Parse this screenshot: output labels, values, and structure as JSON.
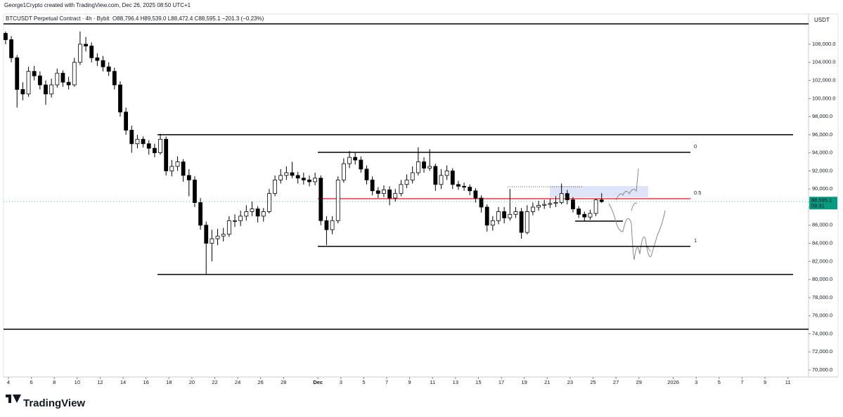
{
  "header": {
    "author_line": "George1Crypto created with TradingView.com, Dec 26, 2025 08:50 UTC+1"
  },
  "footer": {
    "brand": "TradingView"
  },
  "chart_data": {
    "type": "candlestick",
    "symbol_line": "BTCUSDT Perpetual Contract · 4h · Bybit",
    "ohlc_line": "O88,796.4 H89,539.0 L88,472.4 C88,595.1 −201.3 (−0.23%)",
    "currency": "USDT",
    "last_price_label": {
      "value": 88595.1,
      "label": "88,595.1"
    },
    "countdown": "09:31",
    "up_color": "#ffffff",
    "down_color": "#000000",
    "wick_color": "#000000",
    "last_price_color": "#089981",
    "xlim": [
      -0.43,
      69.8
    ],
    "ylim": [
      69224,
      108170
    ],
    "xticks": [
      {
        "value": 0,
        "label": "4"
      },
      {
        "value": 2,
        "label": "6"
      },
      {
        "value": 4,
        "label": "8"
      },
      {
        "value": 6,
        "label": "10"
      },
      {
        "value": 8,
        "label": "12"
      },
      {
        "value": 10,
        "label": "14"
      },
      {
        "value": 12,
        "label": "16"
      },
      {
        "value": 14,
        "label": "18"
      },
      {
        "value": 16,
        "label": "20"
      },
      {
        "value": 18,
        "label": "22"
      },
      {
        "value": 20,
        "label": "24"
      },
      {
        "value": 22,
        "label": "26"
      },
      {
        "value": 24,
        "label": "28"
      },
      {
        "value": 27,
        "label": "Dec"
      },
      {
        "value": 29,
        "label": "3"
      },
      {
        "value": 31,
        "label": "5"
      },
      {
        "value": 33,
        "label": "7"
      },
      {
        "value": 35,
        "label": "9"
      },
      {
        "value": 37,
        "label": "11"
      },
      {
        "value": 39,
        "label": "13"
      },
      {
        "value": 41,
        "label": "15"
      },
      {
        "value": 43,
        "label": "17"
      },
      {
        "value": 45,
        "label": "19"
      },
      {
        "value": 47,
        "label": "21"
      },
      {
        "value": 49,
        "label": "23"
      },
      {
        "value": 51,
        "label": "25"
      },
      {
        "value": 53,
        "label": "27"
      },
      {
        "value": 55,
        "label": "29"
      },
      {
        "value": 58,
        "label": "2026"
      },
      {
        "value": 60,
        "label": "3"
      },
      {
        "value": 62,
        "label": "5"
      },
      {
        "value": 64,
        "label": "7"
      },
      {
        "value": 66,
        "label": "9"
      },
      {
        "value": 68,
        "label": "11"
      }
    ],
    "yticks": [
      {
        "value": 70000,
        "label": "70,000.0"
      },
      {
        "value": 72000,
        "label": "72,000.0"
      },
      {
        "value": 74000,
        "label": "74,000.0"
      },
      {
        "value": 76000,
        "label": "76,000.0"
      },
      {
        "value": 78000,
        "label": "78,000.0"
      },
      {
        "value": 80000,
        "label": "80,000.0"
      },
      {
        "value": 82000,
        "label": "82,000.0"
      },
      {
        "value": 84000,
        "label": "84,000.0"
      },
      {
        "value": 86000,
        "label": "86,000.0"
      },
      {
        "value": 88000,
        "label": "88,000.0"
      },
      {
        "value": 90000,
        "label": "90,000.0"
      },
      {
        "value": 92000,
        "label": "92,000.0"
      },
      {
        "value": 94000,
        "label": "94,000.0"
      },
      {
        "value": 96000,
        "label": "96,000.0"
      },
      {
        "value": 98000,
        "label": "98,000.0"
      },
      {
        "value": 100000,
        "label": "100,000.0"
      },
      {
        "value": 102000,
        "label": "102,000.0"
      },
      {
        "value": 104000,
        "label": "104,000.0"
      },
      {
        "value": 106000,
        "label": "106,000.0"
      }
    ],
    "horizontal_lines": [
      96000,
      80550,
      74500
    ],
    "fib_levels": [
      {
        "value": 94050,
        "label": "0"
      },
      {
        "value": 88930,
        "label": "0.5"
      },
      {
        "value": 83650,
        "label": "1"
      }
    ],
    "fib_colors": [
      "#000000",
      "#f23645",
      "#000000"
    ],
    "x": [
      -0.25,
      0.25,
      0.75,
      1.25,
      1.75,
      2.25,
      2.75,
      3.25,
      3.75,
      4.25,
      4.75,
      5.25,
      5.75,
      6.25,
      6.75,
      7.25,
      7.75,
      8.25,
      8.75,
      9.25,
      9.75,
      10.25,
      10.75,
      11.25,
      11.75,
      12.25,
      12.75,
      13.25,
      13.75,
      14.25,
      14.75,
      15.25,
      15.75,
      16.25,
      16.75,
      17.25,
      17.75,
      18.25,
      18.75,
      19.25,
      19.75,
      20.25,
      20.75,
      21.25,
      21.75,
      22.25,
      22.75,
      23.25,
      23.75,
      24.25,
      24.75,
      25.25,
      25.75,
      26.25,
      26.75,
      27.25,
      27.75,
      28.25,
      28.75,
      29.25,
      29.75,
      30.25,
      30.75,
      31.25,
      31.75,
      32.25,
      32.75,
      33.25,
      33.75,
      34.25,
      34.75,
      35.25,
      35.75,
      36.25,
      36.75,
      37.25,
      37.75,
      38.25,
      38.75,
      39.25,
      39.75,
      40.25,
      40.75,
      41.25,
      41.75,
      42.25,
      42.75,
      43.25,
      43.75,
      44.25,
      44.75,
      45.25,
      45.75,
      46.25,
      46.75,
      47.25,
      47.75,
      48.25,
      48.75,
      49.25,
      49.75,
      50.25,
      50.75,
      51.25,
      51.75
    ],
    "open": [
      107200,
      106500,
      104500,
      101000,
      100500,
      103000,
      102500,
      101500,
      100500,
      101500,
      102800,
      101800,
      101500,
      104000,
      106000,
      105800,
      104500,
      104200,
      103500,
      103000,
      101500,
      98500,
      96500,
      95000,
      95500,
      95000,
      94500,
      94000,
      95500,
      92000,
      92500,
      93000,
      91500,
      91000,
      88500,
      86000,
      84000,
      84500,
      84800,
      85000,
      86500,
      86500,
      87000,
      87500,
      87800,
      87000,
      87500,
      89500,
      91000,
      91500,
      91800,
      91500,
      91200,
      91000,
      90800,
      91200,
      86500,
      85500,
      86500,
      91000,
      92800,
      93500,
      93200,
      92200,
      91000,
      89800,
      89500,
      89900,
      89000,
      89500,
      90500,
      91000,
      91800,
      93000,
      92300,
      92500,
      90500,
      91500,
      92000,
      90500,
      90300,
      90200,
      89800,
      89000,
      88000,
      86000,
      86500,
      87500,
      86800,
      87200,
      87500,
      85200,
      87500,
      88000,
      88200,
      88300,
      88400,
      88500,
      89500,
      88800,
      87800,
      87200,
      86900,
      87300,
      88796.4
    ],
    "high": [
      107400,
      106900,
      104800,
      101800,
      103500,
      103600,
      103000,
      102000,
      102200,
      103300,
      103100,
      102400,
      104500,
      107400,
      106800,
      106200,
      105000,
      104700,
      104000,
      103400,
      101900,
      99000,
      97000,
      96000,
      95800,
      95400,
      95000,
      96100,
      95800,
      93200,
      93600,
      93300,
      92200,
      91400,
      89000,
      86400,
      85500,
      85600,
      85700,
      87000,
      87200,
      87600,
      88200,
      88600,
      88100,
      87900,
      90000,
      91500,
      92200,
      92500,
      93000,
      91900,
      91800,
      91500,
      91800,
      91500,
      87000,
      87000,
      91400,
      93400,
      94200,
      94000,
      93600,
      92600,
      91400,
      90200,
      90400,
      90300,
      90000,
      91000,
      91600,
      92500,
      94600,
      93500,
      94400,
      92800,
      92200,
      92600,
      92300,
      90900,
      90700,
      90500,
      90100,
      89300,
      88300,
      87000,
      88000,
      88000,
      90000,
      88000,
      87900,
      88200,
      88500,
      88700,
      88800,
      88900,
      89200,
      90600,
      89900,
      89100,
      88100,
      87500,
      87700,
      88900,
      89539.0
    ],
    "low": [
      106000,
      104000,
      99000,
      99800,
      100200,
      102000,
      101000,
      99300,
      100100,
      101200,
      101300,
      101000,
      101300,
      103700,
      105200,
      104000,
      103600,
      103000,
      102500,
      101000,
      98000,
      96000,
      94000,
      94500,
      94600,
      93800,
      93500,
      93800,
      91500,
      91400,
      92000,
      90800,
      89200,
      88000,
      85500,
      80600,
      82000,
      83800,
      84200,
      84700,
      85800,
      85900,
      86500,
      87000,
      86300,
      86400,
      87300,
      89200,
      90600,
      91000,
      91200,
      90600,
      90500,
      90300,
      90400,
      86000,
      83800,
      85000,
      86200,
      90700,
      92300,
      92700,
      91800,
      90500,
      89300,
      89000,
      89100,
      88200,
      88600,
      89200,
      90100,
      90600,
      91500,
      91800,
      92000,
      89800,
      90000,
      91000,
      90000,
      89900,
      89800,
      89300,
      88500,
      87400,
      85300,
      85400,
      86100,
      86200,
      86500,
      86800,
      84500,
      85000,
      87100,
      87600,
      87800,
      87900,
      88000,
      88300,
      88300,
      87400,
      86800,
      86400,
      86600,
      87000,
      88472.4
    ],
    "close": [
      106500,
      104500,
      101000,
      100500,
      103000,
      102500,
      101500,
      100500,
      101500,
      102800,
      101800,
      101500,
      104000,
      106000,
      105800,
      104500,
      104200,
      103500,
      103000,
      101500,
      98500,
      96500,
      95000,
      95500,
      95000,
      94500,
      94000,
      95500,
      92000,
      92500,
      93000,
      91500,
      91000,
      88500,
      86000,
      84000,
      84500,
      84800,
      85000,
      86500,
      86500,
      87000,
      87500,
      87800,
      87000,
      87500,
      89500,
      91000,
      91500,
      91800,
      91500,
      91200,
      91000,
      90800,
      91200,
      86500,
      85500,
      86500,
      91000,
      92800,
      93500,
      93200,
      92200,
      91000,
      89800,
      89500,
      89900,
      89000,
      89500,
      90500,
      91000,
      91800,
      93000,
      92300,
      92500,
      90500,
      91500,
      92000,
      90500,
      90300,
      90200,
      89800,
      89000,
      88000,
      86000,
      86500,
      87500,
      86800,
      87200,
      87500,
      85200,
      87500,
      88000,
      88200,
      88300,
      88400,
      88500,
      89500,
      88800,
      87800,
      87200,
      86900,
      87300,
      88796.4,
      88595.1
    ]
  }
}
